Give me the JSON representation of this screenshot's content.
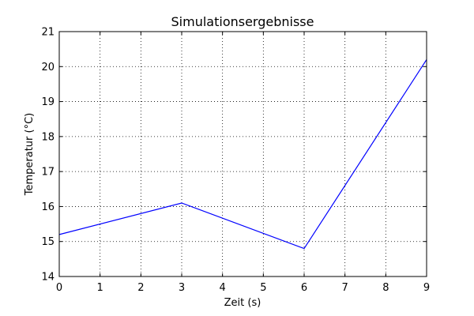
{
  "chart_data": {
    "type": "line",
    "title": "Simulationsergebnisse",
    "xlabel": "Zeit (s)",
    "ylabel": "Temperatur (°C)",
    "xlim": [
      0,
      9
    ],
    "ylim": [
      14,
      21
    ],
    "xticks": [
      "0",
      "1",
      "2",
      "3",
      "4",
      "5",
      "6",
      "7",
      "8",
      "9"
    ],
    "yticks": [
      "14",
      "15",
      "16",
      "17",
      "18",
      "19",
      "20",
      "21"
    ],
    "grid": true,
    "series": [
      {
        "color": "#0000ff",
        "x": [
          0,
          3,
          6,
          9
        ],
        "y": [
          15.2,
          16.1,
          14.8,
          20.2
        ]
      }
    ]
  }
}
